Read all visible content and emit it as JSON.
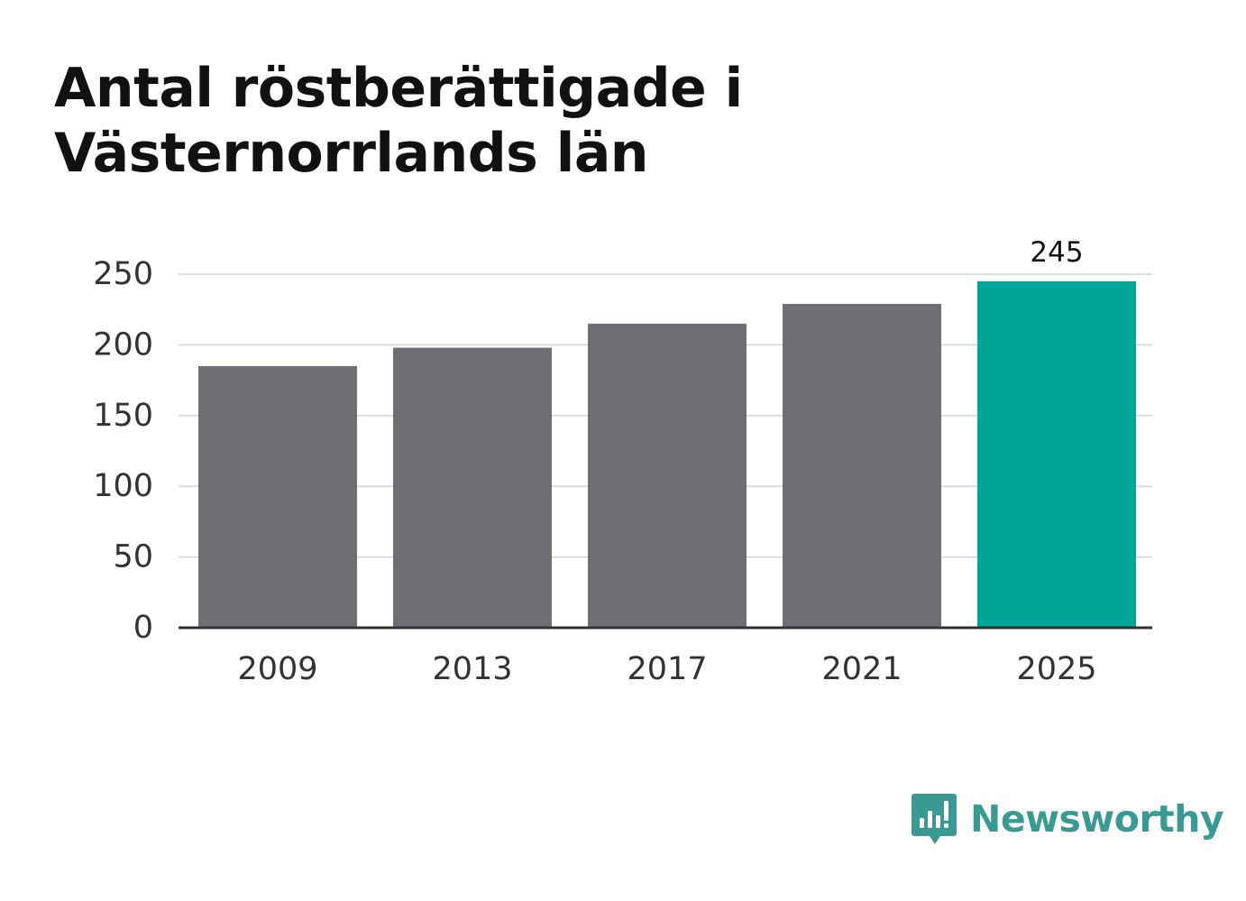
{
  "title": "Antal röstberättigade i Västernorrlands län",
  "brand": {
    "name": "Newsworthy",
    "icon": "newsworthy-logo-icon",
    "color": "#3a9a93"
  },
  "chart_data": {
    "type": "bar",
    "title": "Antal röstberättigade i Västernorrlands län",
    "xlabel": "",
    "ylabel": "",
    "categories": [
      "2009",
      "2013",
      "2017",
      "2021",
      "2025"
    ],
    "values": [
      185,
      198,
      215,
      229,
      245
    ],
    "ylim": [
      0,
      250
    ],
    "yticks": [
      0,
      50,
      100,
      150,
      200,
      250
    ],
    "grid": true,
    "highlight_index": 4,
    "data_labels": [
      {
        "index": 4,
        "text": "245"
      }
    ],
    "colors": {
      "bar": "#6f6e74",
      "highlight": "#00a59a",
      "grid": "#dddddd",
      "axis": "#333333"
    }
  }
}
